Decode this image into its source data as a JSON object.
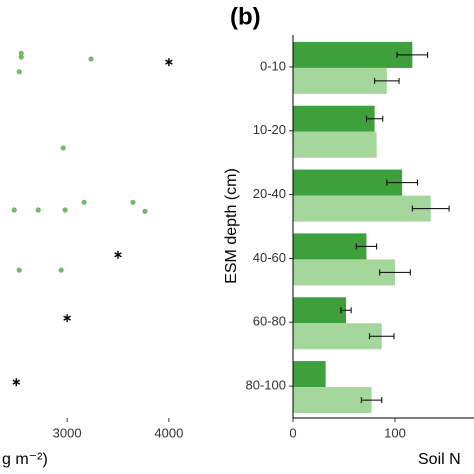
{
  "chart_data": [
    {
      "type": "scatter",
      "x_label": "g m⁻²)",
      "xlim": [
        2340,
        4640
      ],
      "xticks": [
        3000,
        4000
      ],
      "ylim": [
        6,
        0
      ],
      "series": [
        {
          "name": null,
          "marker": "dot",
          "color": "#5aae50",
          "x": [
            2549,
            2549,
            3235,
            2529,
            2961,
            2480,
            2716,
            2980,
            3167,
            3647,
            3765,
            2529,
            2941
          ],
          "y": [
            0.3,
            0.36,
            0.39,
            0.59,
            1.78,
            2.75,
            2.75,
            2.75,
            2.63,
            2.63,
            2.77,
            3.69,
            3.69
          ]
        },
        {
          "name": null,
          "marker": "asterisk",
          "color": "#000000",
          "x": [
            4000,
            3500,
            3000,
            2500
          ],
          "y": [
            0.44,
            3.45,
            4.44,
            5.44
          ]
        }
      ]
    },
    {
      "type": "hbar",
      "title": "(b)",
      "x_label": "Soil N",
      "y_label": "ESM depth (cm)",
      "categories": [
        "0-10",
        "10-20",
        "20-40",
        "40-60",
        "60-80",
        "80-100"
      ],
      "xlim": [
        0,
        178
      ],
      "xticks": [
        0,
        100
      ],
      "series": [
        {
          "name": null,
          "color": "#3f9f3a",
          "values": [
            117,
            80,
            107,
            72,
            52,
            32
          ],
          "errors": [
            15,
            8,
            15,
            10,
            5,
            0
          ]
        },
        {
          "name": null,
          "color": "#a5d69c",
          "values": [
            92,
            82,
            135,
            100,
            87,
            77
          ],
          "errors": [
            12,
            0,
            18,
            15,
            12,
            10
          ]
        }
      ]
    }
  ]
}
